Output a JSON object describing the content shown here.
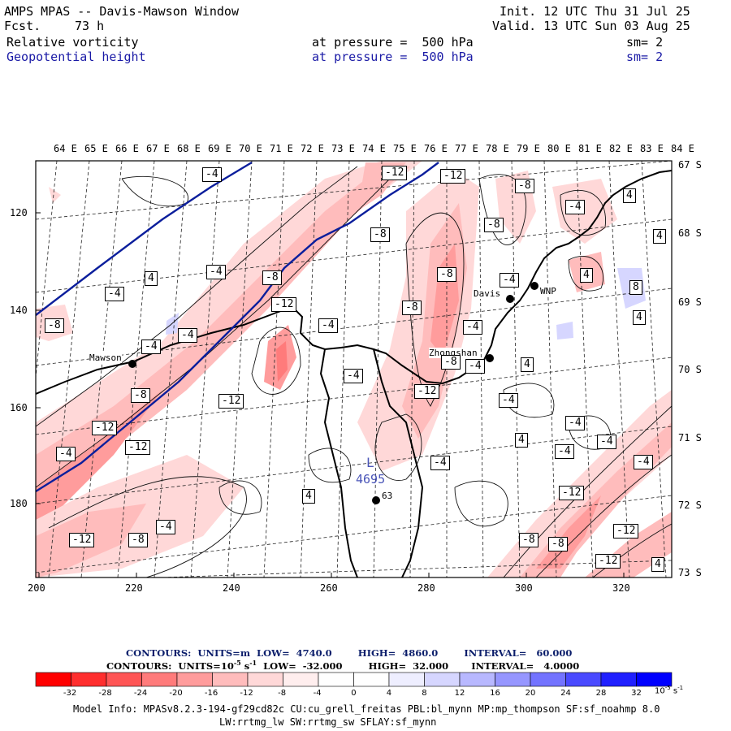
{
  "header": {
    "title": "AMPS MPAS -- Davis-Mawson Window",
    "fcst_label": "Fcst.",
    "fcst_value": "73 h",
    "init": "Init. 12 UTC Thu 31 Jul 25",
    "valid": "Valid. 13 UTC Sun 03 Aug 25",
    "fields": [
      {
        "name": "Relative vorticity",
        "level": "at pressure =  500 hPa",
        "sm": "sm= 2"
      },
      {
        "name": "Geopotential height",
        "level": "at pressure =  500 hPa",
        "sm": "sm= 2"
      }
    ]
  },
  "map": {
    "lon_labels": [
      "64 E",
      "65 E",
      "66 E",
      "67 E",
      "68 E",
      "69 E",
      "70 E",
      "71 E",
      "72 E",
      "73 E",
      "74 E",
      "75 E",
      "76 E",
      "77 E",
      "78 E",
      "79 E",
      "80 E",
      "81 E",
      "82 E",
      "83 E",
      "84 E"
    ],
    "lat_labels": [
      "67 S",
      "68 S",
      "69 S",
      "70 S",
      "71 S",
      "72 S",
      "73 S"
    ],
    "y_ticks": [
      "120",
      "140",
      "160",
      "180"
    ],
    "x_ticks": [
      "200",
      "220",
      "240",
      "260",
      "280",
      "300",
      "320"
    ],
    "stations": [
      {
        "name": "Mawson"
      },
      {
        "name": "Davis"
      },
      {
        "name": "WNP"
      },
      {
        "name": "Zhongshan"
      },
      {
        "name": "63"
      }
    ],
    "low_marker": {
      "label": "L",
      "value": "4695"
    },
    "contour_labels": [
      "-12",
      "-12",
      "-4",
      "4",
      "-8",
      "-8",
      "-4",
      "4",
      "-8",
      "-4",
      "4",
      "-4",
      "-8",
      "-12",
      "-4",
      "-8",
      "-4",
      "4",
      "8",
      "-4",
      "-8",
      "-8",
      "-4",
      "-8",
      "-4",
      "4",
      "4",
      "-4",
      "-12",
      "-8",
      "-12",
      "-4",
      "-12",
      "-4",
      "-4",
      "4",
      "-4",
      "-4",
      "-4",
      "-12",
      "-12",
      "-8",
      "-4",
      "-12",
      "-8",
      "-8",
      "-12",
      "4",
      "-12",
      "-4",
      "-4",
      "4",
      "-12",
      "-4",
      "-12",
      "-8",
      "-4"
    ]
  },
  "legend": {
    "line1": "CONTOURS:  UNITS=m  LOW=  4740.0        HIGH=  4860.0        INTERVAL=   60.000",
    "line2_a": "CONTOURS:  UNITS=10",
    "line2_sup": "-5",
    "line2_b": " s",
    "line2_sup2": "-1",
    "line2_c": "  LOW=  -32.000        HIGH=  32.000       INTERVAL=   4.0000",
    "colorbar_ticks": [
      "-32",
      "-28",
      "-24",
      "-20",
      "-16",
      "-12",
      "-8",
      "-4",
      "0",
      "4",
      "8",
      "12",
      "16",
      "20",
      "24",
      "28",
      "32"
    ],
    "colorbar_unit": "10",
    "colorbar_unit_sup": "-5",
    "colorbar_unit_b": " s",
    "colorbar_unit_sup2": "-1",
    "colors": [
      "#ff0000",
      "#ff2e2e",
      "#ff5555",
      "#ff7b7b",
      "#ff9c9c",
      "#ffbcbc",
      "#ffd8d8",
      "#ffeeee",
      "#ffffff",
      "#ffffff",
      "#eeeeff",
      "#d6d6ff",
      "#b8b8ff",
      "#9696ff",
      "#7373ff",
      "#4a4aff",
      "#2020ff",
      "#0000ff"
    ]
  },
  "model_info": {
    "line1": "Model Info: MPASv8.2.3-194-gf29cd82c CU:cu_grell_freitas PBL:bl_mynn MP:mp_thompson SF:sf_noahmp 8.0",
    "line2": "LW:rrtmg_lw SW:rrtmg_sw SFLAY:sf_mynn"
  }
}
